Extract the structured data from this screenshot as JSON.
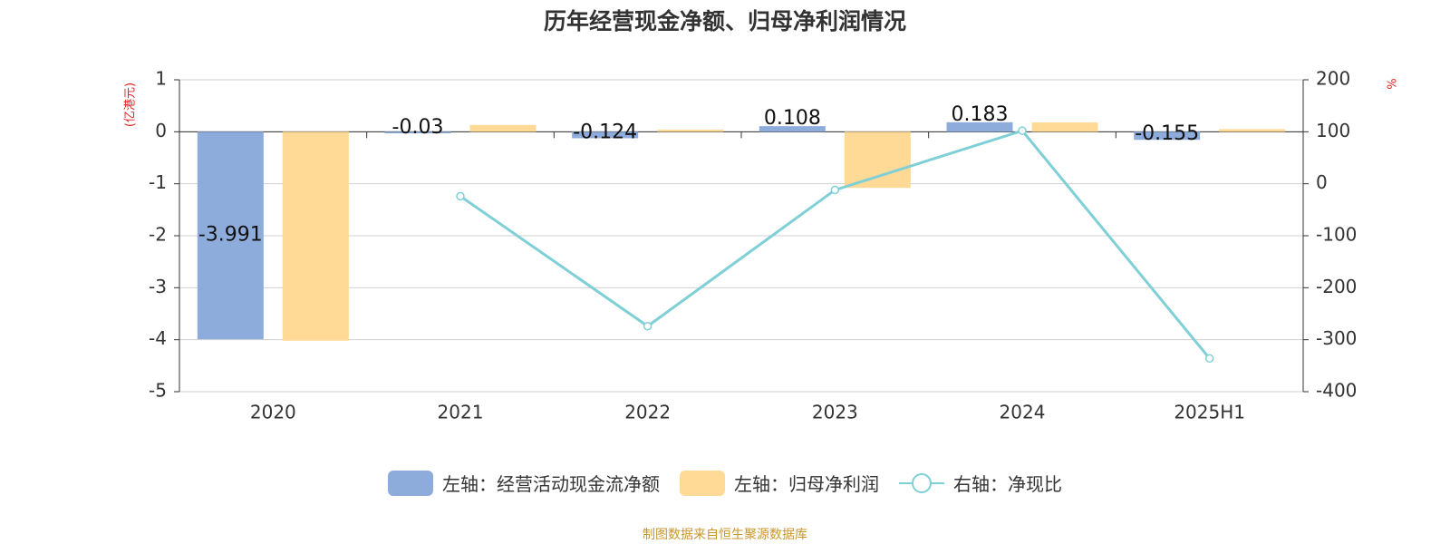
{
  "title": "历年经营现金净额、归母净利润情况",
  "left_unit": "(亿港元)",
  "right_unit": "%",
  "source": "制图数据来自恒生聚源数据库",
  "colors": {
    "cash_flow": "#8eacdb",
    "net_profit": "#ffd996",
    "ratio": "#7fd0d6",
    "grid": "#d0d0d0",
    "axis": "#333333",
    "unit_text": "#e02020",
    "source_text": "#c9962b"
  },
  "legend": [
    {
      "label": "左轴：经营活动现金流净额",
      "icon": "bar-swatch"
    },
    {
      "label": "左轴：归母净利润",
      "icon": "bar-swatch"
    },
    {
      "label": "右轴：净现比",
      "icon": "line-circle-marker"
    }
  ],
  "chart_data": {
    "type": "bar",
    "categories": [
      "2020",
      "2021",
      "2022",
      "2023",
      "2024",
      "2025H1"
    ],
    "series": [
      {
        "name": "左轴：经营活动现金流净额",
        "type": "bar",
        "axis": "left",
        "values": [
          -3.991,
          -0.03,
          -0.124,
          0.108,
          0.183,
          -0.155
        ],
        "data_labels": [
          "-3.991",
          "-0.03",
          "-0.124",
          "0.108",
          "0.183",
          "-0.155"
        ]
      },
      {
        "name": "左轴：归母净利润",
        "type": "bar",
        "axis": "left",
        "values": [
          -4.02,
          0.13,
          0.04,
          -1.08,
          0.18,
          0.05
        ]
      },
      {
        "name": "右轴：净现比",
        "type": "line",
        "axis": "right",
        "values": [
          null,
          -24,
          -274,
          -12,
          102,
          -336
        ]
      }
    ],
    "left_axis": {
      "min": -5,
      "max": 1,
      "ticks": [
        1,
        0,
        -1,
        -2,
        -3,
        -4,
        -5
      ]
    },
    "right_axis": {
      "min": -400,
      "max": 200,
      "ticks": [
        200,
        100,
        0,
        -100,
        -200,
        -300,
        -400
      ]
    },
    "grid": true,
    "legend_position": "bottom"
  }
}
